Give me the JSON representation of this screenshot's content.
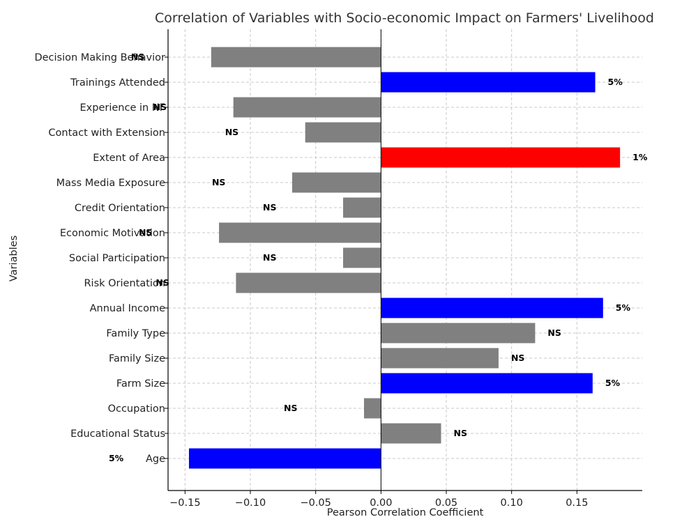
{
  "chart_data": {
    "type": "bar",
    "orientation": "horizontal",
    "title": "Correlation of Variables with Socio-economic Impact on Farmers' Livelihood",
    "xlabel": "Pearson Correlation Coefficient",
    "ylabel": "Variables",
    "xlim": [
      -0.163,
      0.2
    ],
    "xticks": [
      -0.15,
      -0.1,
      -0.05,
      0.0,
      0.05,
      0.1,
      0.15
    ],
    "xtick_labels": [
      "−0.15",
      "−0.10",
      "−0.05",
      "0.00",
      "0.05",
      "0.10",
      "0.15"
    ],
    "grid": true,
    "colors": {
      "NS": "#808080",
      "5%": "#0000ff",
      "1%": "#ff0000"
    },
    "bars": [
      {
        "category": "Age",
        "value": -0.147,
        "significance": "5%"
      },
      {
        "category": "Educational Status",
        "value": 0.046,
        "significance": "NS"
      },
      {
        "category": "Occupation",
        "value": -0.013,
        "significance": "NS"
      },
      {
        "category": "Farm Size",
        "value": 0.162,
        "significance": "5%"
      },
      {
        "category": "Family Size",
        "value": 0.09,
        "significance": "NS"
      },
      {
        "category": "Family Type",
        "value": 0.118,
        "significance": "NS"
      },
      {
        "category": "Annual Income",
        "value": 0.17,
        "significance": "5%"
      },
      {
        "category": "Risk Orientation",
        "value": -0.111,
        "significance": "NS"
      },
      {
        "category": "Social Participation",
        "value": -0.029,
        "significance": "NS"
      },
      {
        "category": "Economic Motivation",
        "value": -0.124,
        "significance": "NS"
      },
      {
        "category": "Credit Orientation",
        "value": -0.029,
        "significance": "NS"
      },
      {
        "category": "Mass Media Exposure",
        "value": -0.068,
        "significance": "NS"
      },
      {
        "category": "Extent of Area",
        "value": 0.183,
        "significance": "1%"
      },
      {
        "category": "Contact with Extension",
        "value": -0.058,
        "significance": "NS"
      },
      {
        "category": "Experience in NF",
        "value": -0.113,
        "significance": "NS"
      },
      {
        "category": "Trainings Attended",
        "value": 0.164,
        "significance": "5%"
      },
      {
        "category": "Decision Making Behavior",
        "value": -0.13,
        "significance": "NS"
      }
    ]
  }
}
